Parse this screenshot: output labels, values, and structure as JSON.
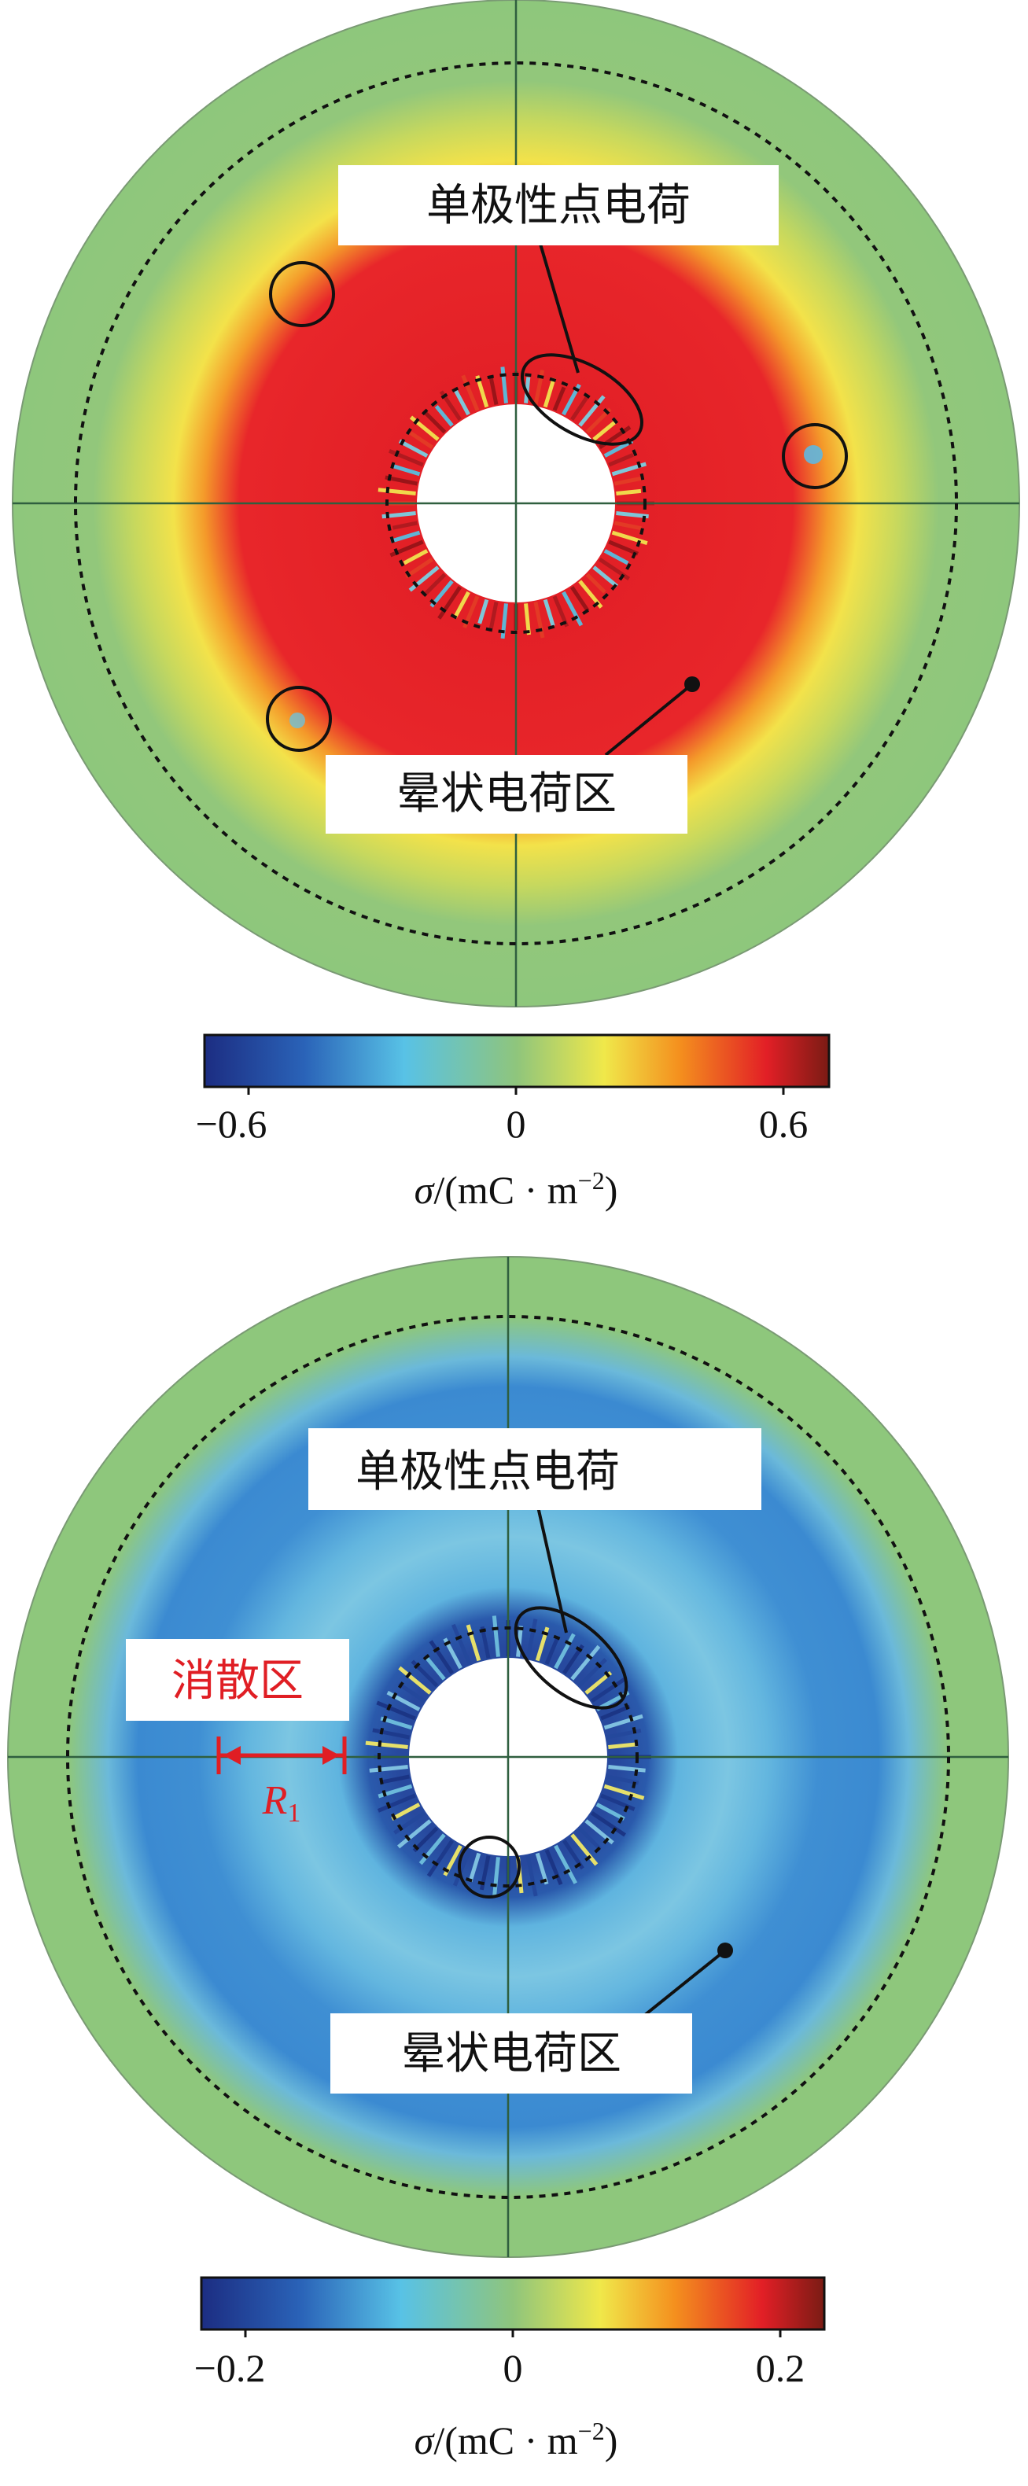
{
  "panels": [
    {
      "callouts": {
        "point_charge": "单极性点电荷",
        "halo_region": "晕状电荷区"
      },
      "colorbar": {
        "ticks": [
          "−0.6",
          "0",
          "0.6"
        ],
        "stops": [
          "#1c2d82",
          "#2a63b8",
          "#58c2e6",
          "#8fc57c",
          "#f0e84a",
          "#f4901e",
          "#e21f26",
          "#7a1b14"
        ]
      },
      "quantity_label": {
        "symbol": "σ",
        "slash": "/",
        "unit_open": "(mC · m",
        "unit_exp": "−2",
        "unit_close": ")"
      }
    },
    {
      "callouts": {
        "point_charge": "单极性点电荷",
        "halo_region": "晕状电荷区",
        "dissipation_region": "消散区",
        "radius_symbol": "R",
        "radius_subscript": "1"
      },
      "colorbar": {
        "ticks": [
          "−0.2",
          "0",
          "0.2"
        ],
        "stops": [
          "#1c2d82",
          "#2a63b8",
          "#58c2e6",
          "#8fc57c",
          "#f0e84a",
          "#f4901e",
          "#e21f26",
          "#7a1b14"
        ]
      },
      "quantity_label": {
        "symbol": "σ",
        "slash": "/",
        "unit_open": "(mC · m",
        "unit_exp": "−2",
        "unit_close": ")"
      }
    }
  ],
  "colors": {
    "disc_outer": "#8ec77c",
    "panel_a_halo": "#e62a22",
    "panel_a_transition": "#f3e64a",
    "panel_b_band": "#3f8fd3",
    "panel_b_light": "#79c3e2",
    "annotation_red": "#e01e24"
  }
}
